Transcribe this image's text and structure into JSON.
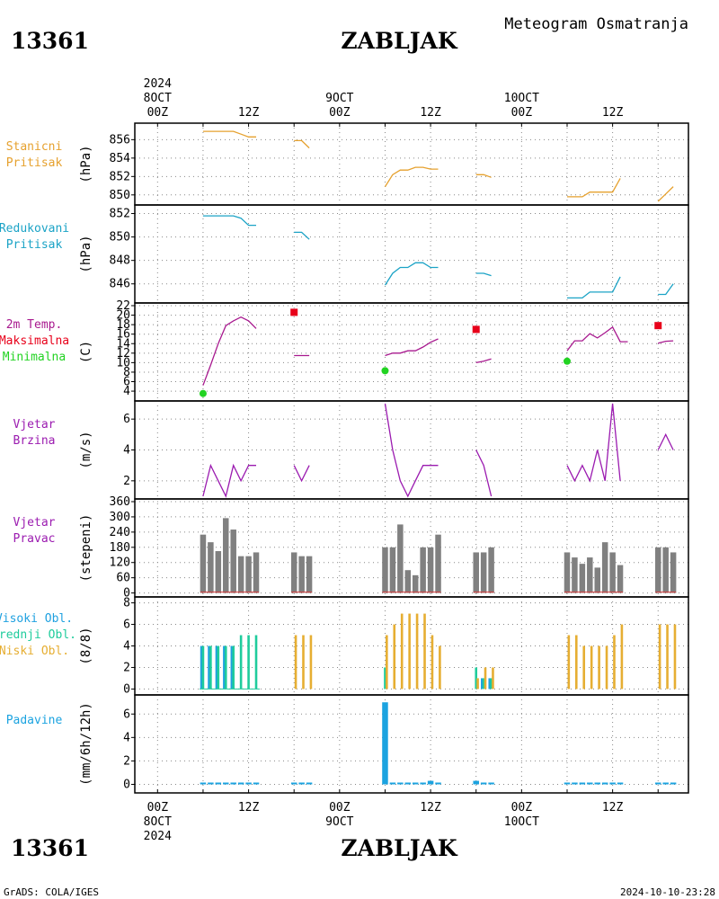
{
  "header": {
    "station_id": "13361",
    "station_name": "ZABLJAK",
    "title": "Meteogram Osmatranja"
  },
  "footer": {
    "station_id": "13361",
    "station_name": "ZABLJAK",
    "credit": "GrADS: COLA/IGES",
    "timestamp": "2024-10-10-23:28"
  },
  "time_axis": {
    "top_labels": [
      {
        "hour": 0,
        "lines": [
          "2024",
          "8OCT",
          "00Z"
        ]
      },
      {
        "hour": 12,
        "lines": [
          "12Z"
        ]
      },
      {
        "hour": 24,
        "lines": [
          "9OCT",
          "00Z"
        ]
      },
      {
        "hour": 36,
        "lines": [
          "12Z"
        ]
      },
      {
        "hour": 48,
        "lines": [
          "10OCT",
          "00Z"
        ]
      },
      {
        "hour": 60,
        "lines": [
          "12Z"
        ]
      }
    ],
    "bottom_labels": [
      {
        "hour": 0,
        "lines": [
          "00Z",
          "8OCT",
          "2024"
        ]
      },
      {
        "hour": 12,
        "lines": [
          "12Z"
        ]
      },
      {
        "hour": 24,
        "lines": [
          "00Z",
          "9OCT"
        ]
      },
      {
        "hour": 36,
        "lines": [
          "12Z"
        ]
      },
      {
        "hour": 48,
        "lines": [
          "00Z",
          "10OCT"
        ]
      },
      {
        "hour": 60,
        "lines": [
          "12Z"
        ]
      }
    ],
    "range_hours": [
      -3,
      70
    ]
  },
  "colors": {
    "station_pressure": "#e6a12e",
    "reduced_pressure": "#1ba3c6",
    "temperature": "#a8198f",
    "tmax": "#e8001a",
    "tmin": "#22d322",
    "wind": "#9b1bb0",
    "wind_dir_bar": "#808080",
    "wind_dir_base": "#d84040",
    "cloud_high": "#1fa1e0",
    "cloud_mid": "#1fcc9c",
    "cloud_low": "#e6ae32",
    "precip": "#1ba3e0"
  },
  "chart_data": [
    {
      "type": "line",
      "panel": "station_pressure",
      "labels": [
        "Stanicni",
        "Pritisak"
      ],
      "ylabel": "(hPa)",
      "ylim": [
        849.2,
        857.5
      ],
      "yticks": [
        850,
        852,
        854,
        856
      ],
      "color_key": "station_pressure",
      "segments": [
        [
          [
            6,
            856.9
          ],
          [
            7,
            856.9
          ],
          [
            8,
            856.9
          ],
          [
            9,
            856.9
          ],
          [
            10,
            856.9
          ],
          [
            11,
            856.6
          ],
          [
            12,
            856.3
          ],
          [
            13,
            856.3
          ]
        ],
        [
          [
            18,
            855.9
          ],
          [
            19,
            855.9
          ],
          [
            20,
            855.1
          ]
        ],
        [
          [
            30,
            850.9
          ],
          [
            31,
            852.2
          ],
          [
            32,
            852.7
          ],
          [
            33,
            852.7
          ],
          [
            34,
            853.0
          ],
          [
            35,
            853.0
          ],
          [
            36,
            852.8
          ],
          [
            37,
            852.8
          ]
        ],
        [
          [
            42,
            852.2
          ],
          [
            43,
            852.2
          ],
          [
            44,
            851.9
          ]
        ],
        [
          [
            54,
            849.8
          ],
          [
            55,
            849.8
          ],
          [
            56,
            849.8
          ],
          [
            57,
            850.3
          ],
          [
            58,
            850.3
          ],
          [
            59,
            850.3
          ],
          [
            60,
            850.3
          ],
          [
            61,
            851.8
          ]
        ],
        [
          [
            66,
            849.3
          ],
          [
            67,
            850.1
          ],
          [
            68,
            850.9
          ]
        ]
      ]
    },
    {
      "type": "line",
      "panel": "reduced_pressure",
      "labels": [
        "Redukovani",
        "Pritisak"
      ],
      "ylabel": "(hPa)",
      "ylim": [
        844.6,
        852.5
      ],
      "yticks": [
        846,
        848,
        850,
        852
      ],
      "color_key": "reduced_pressure",
      "segments": [
        [
          [
            6,
            851.8
          ],
          [
            7,
            851.8
          ],
          [
            8,
            851.8
          ],
          [
            9,
            851.8
          ],
          [
            10,
            851.8
          ],
          [
            11,
            851.6
          ],
          [
            12,
            851.0
          ],
          [
            13,
            851.0
          ]
        ],
        [
          [
            18,
            850.4
          ],
          [
            19,
            850.4
          ],
          [
            20,
            849.8
          ]
        ],
        [
          [
            30,
            845.9
          ],
          [
            31,
            846.9
          ],
          [
            32,
            847.4
          ],
          [
            33,
            847.4
          ],
          [
            34,
            847.8
          ],
          [
            35,
            847.8
          ],
          [
            36,
            847.4
          ],
          [
            37,
            847.4
          ]
        ],
        [
          [
            42,
            846.9
          ],
          [
            43,
            846.9
          ],
          [
            44,
            846.7
          ]
        ],
        [
          [
            54,
            844.8
          ],
          [
            55,
            844.8
          ],
          [
            56,
            844.8
          ],
          [
            57,
            845.3
          ],
          [
            58,
            845.3
          ],
          [
            59,
            845.3
          ],
          [
            60,
            845.3
          ],
          [
            61,
            846.6
          ]
        ],
        [
          [
            66,
            845.1
          ],
          [
            67,
            845.1
          ],
          [
            68,
            846.0
          ]
        ]
      ]
    },
    {
      "type": "line",
      "panel": "temperature",
      "labels": [
        "2m Temp.",
        "Maksimalna",
        "Minimalna"
      ],
      "ylabel": "(C)",
      "ylim": [
        2.5,
        22
      ],
      "yticks": [
        4,
        6,
        8,
        10,
        12,
        14,
        16,
        18,
        20,
        22
      ],
      "color_key": "temperature",
      "segments": [
        [
          [
            6,
            5.2
          ],
          [
            7,
            9.5
          ],
          [
            8,
            14.0
          ],
          [
            9,
            17.8
          ],
          [
            10,
            18.8
          ],
          [
            11,
            19.6
          ],
          [
            12,
            18.8
          ],
          [
            13,
            17.2
          ]
        ],
        [
          [
            18,
            11.5
          ],
          [
            19,
            11.5
          ],
          [
            20,
            11.5
          ]
        ],
        [
          [
            30,
            11.5
          ],
          [
            31,
            12.0
          ],
          [
            32,
            12.0
          ],
          [
            33,
            12.5
          ],
          [
            34,
            12.5
          ],
          [
            35,
            13.3
          ],
          [
            36,
            14.3
          ],
          [
            37,
            15.0
          ]
        ],
        [
          [
            42,
            10.0
          ],
          [
            43,
            10.3
          ],
          [
            44,
            10.8
          ]
        ],
        [
          [
            54,
            12.5
          ],
          [
            55,
            14.6
          ],
          [
            56,
            14.6
          ],
          [
            57,
            16.1
          ],
          [
            58,
            15.2
          ],
          [
            59,
            16.3
          ],
          [
            60,
            17.5
          ],
          [
            61,
            14.4
          ],
          [
            62,
            14.4
          ]
        ],
        [
          [
            66,
            14.1
          ],
          [
            67,
            14.5
          ],
          [
            68,
            14.6
          ]
        ]
      ],
      "tmax": [
        [
          18,
          20.6
        ],
        [
          42,
          17.0
        ],
        [
          66,
          17.8
        ]
      ],
      "tmin": [
        [
          6,
          3.5
        ],
        [
          30,
          8.3
        ],
        [
          54,
          10.3
        ]
      ]
    },
    {
      "type": "line",
      "panel": "wind_speed",
      "labels": [
        "Vjetar",
        "Brzina"
      ],
      "ylabel": "(m/s)",
      "ylim": [
        1,
        7
      ],
      "yticks": [
        2,
        4,
        6
      ],
      "color_key": "wind",
      "segments": [
        [
          [
            6,
            1
          ],
          [
            7,
            3
          ],
          [
            8,
            2
          ],
          [
            9,
            1
          ],
          [
            10,
            3
          ],
          [
            11,
            2
          ],
          [
            12,
            3
          ],
          [
            13,
            3
          ]
        ],
        [
          [
            18,
            3
          ],
          [
            19,
            2
          ],
          [
            20,
            3
          ]
        ],
        [
          [
            30,
            7
          ],
          [
            31,
            4
          ],
          [
            32,
            2
          ],
          [
            33,
            1
          ],
          [
            34,
            2
          ],
          [
            35,
            3
          ],
          [
            36,
            3
          ],
          [
            37,
            3
          ]
        ],
        [
          [
            42,
            4
          ],
          [
            43,
            3
          ],
          [
            44,
            1
          ]
        ],
        [
          [
            54,
            3
          ],
          [
            55,
            2
          ],
          [
            56,
            3
          ],
          [
            57,
            2
          ],
          [
            58,
            4
          ],
          [
            59,
            2
          ],
          [
            60,
            7
          ],
          [
            61,
            2
          ]
        ],
        [
          [
            66,
            4
          ],
          [
            67,
            5
          ],
          [
            68,
            4
          ]
        ]
      ]
    },
    {
      "type": "bar",
      "panel": "wind_direction",
      "labels": [
        "Vjetar",
        "Pravac"
      ],
      "ylabel": "(stepeni)",
      "ylim": [
        -5,
        360
      ],
      "yticks": [
        0,
        60,
        120,
        180,
        240,
        300,
        360
      ],
      "color_key": "wind_dir_bar",
      "x": [
        6,
        7,
        8,
        9,
        10,
        11,
        12,
        13,
        18,
        19,
        20,
        30,
        31,
        32,
        33,
        34,
        35,
        36,
        37,
        42,
        43,
        44,
        54,
        55,
        56,
        57,
        58,
        59,
        60,
        61,
        66,
        67,
        68
      ],
      "values": [
        230,
        200,
        165,
        295,
        250,
        145,
        145,
        160,
        160,
        145,
        145,
        180,
        180,
        270,
        90,
        70,
        180,
        180,
        230,
        160,
        160,
        180,
        160,
        140,
        115,
        140,
        100,
        200,
        160,
        110,
        180,
        180,
        160
      ]
    },
    {
      "type": "bar",
      "panel": "clouds",
      "labels": [
        "Visoki Obl.",
        "Srednji Obl.",
        "Niski Obl."
      ],
      "ylabel": "(8/8)",
      "ylim": [
        -0.3,
        8.3
      ],
      "yticks": [
        0,
        2,
        4,
        6,
        8
      ],
      "series": [
        {
          "name": "Visoki Obl.",
          "color_key": "cloud_high",
          "offset": -0.22,
          "x": [
            6,
            7,
            8,
            9,
            10,
            43,
            44
          ],
          "values": [
            4,
            4,
            4,
            4,
            4,
            1,
            1
          ]
        },
        {
          "name": "Srednji Obl.",
          "color_key": "cloud_mid",
          "offset": 0,
          "x": [
            6,
            7,
            8,
            9,
            10,
            11,
            12,
            13,
            30,
            42,
            43,
            44
          ],
          "values": [
            4,
            4,
            4,
            4,
            4,
            5,
            5,
            5,
            2,
            2,
            1,
            1
          ]
        },
        {
          "name": "Niski Obl.",
          "color_key": "cloud_low",
          "offset": 0.22,
          "x": [
            18,
            19,
            20,
            30,
            31,
            32,
            33,
            34,
            35,
            36,
            37,
            42,
            43,
            44,
            54,
            55,
            56,
            57,
            58,
            59,
            60,
            61,
            66,
            67,
            68
          ],
          "values": [
            5,
            5,
            5,
            5,
            6,
            7,
            7,
            7,
            7,
            5,
            4,
            1,
            2,
            2,
            5,
            5,
            4,
            4,
            4,
            4,
            5,
            6,
            6,
            6,
            6
          ]
        }
      ]
    },
    {
      "type": "bar",
      "panel": "precipitation",
      "labels": [
        "Padavine"
      ],
      "ylabel": "(mm/6h/12h)",
      "ylim": [
        -0.5,
        7.4
      ],
      "yticks": [
        0,
        2,
        4,
        6
      ],
      "color_key": "precip",
      "x": [
        6,
        7,
        8,
        9,
        10,
        11,
        12,
        13,
        18,
        19,
        20,
        30,
        31,
        32,
        33,
        34,
        35,
        36,
        37,
        42,
        43,
        44,
        54,
        55,
        56,
        57,
        58,
        59,
        60,
        61,
        66,
        67,
        68
      ],
      "values": [
        0,
        0,
        0,
        0,
        0,
        0,
        0,
        0,
        0,
        0,
        0,
        7,
        0,
        0,
        0,
        0,
        0,
        0.3,
        0,
        0.3,
        0,
        0,
        0,
        0,
        0,
        0,
        0,
        0,
        0,
        0,
        0,
        0,
        0
      ]
    }
  ]
}
